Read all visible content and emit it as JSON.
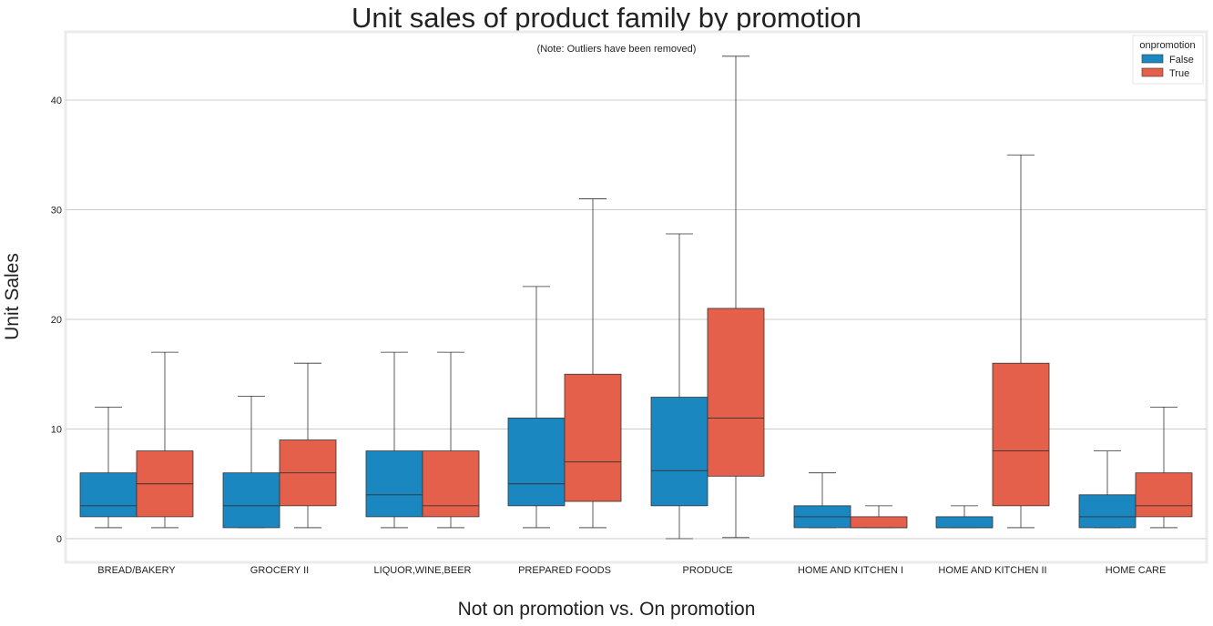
{
  "chart_data": {
    "type": "boxplot",
    "title": "Unit sales of product family by promotion",
    "note": "(Note: Outliers have been removed)",
    "xlabel": "Not on promotion vs. On promotion",
    "ylabel": "Unit Sales",
    "ylim": [
      -2,
      46
    ],
    "yticks": [
      0,
      10,
      20,
      30,
      40
    ],
    "grid": true,
    "legend": {
      "title": "onpromotion",
      "placement": "top-right",
      "entries": [
        "False",
        "True"
      ]
    },
    "colors": {
      "False": "#1a87c1",
      "True": "#e5604b"
    },
    "categories": [
      "BREAD/BAKERY",
      "GROCERY II",
      "LIQUOR,WINE,BEER",
      "PREPARED FOODS",
      "PRODUCE",
      "HOME AND KITCHEN I",
      "HOME AND KITCHEN II",
      "HOME CARE"
    ],
    "series": [
      {
        "name": "False",
        "boxes": [
          {
            "whislo": 1,
            "q1": 2,
            "med": 3,
            "q3": 6,
            "whishi": 12
          },
          {
            "whislo": 1,
            "q1": 1,
            "med": 3,
            "q3": 6,
            "whishi": 13
          },
          {
            "whislo": 1,
            "q1": 2,
            "med": 4,
            "q3": 8,
            "whishi": 17
          },
          {
            "whislo": 1,
            "q1": 3,
            "med": 5,
            "q3": 11,
            "whishi": 23
          },
          {
            "whislo": 0,
            "q1": 3,
            "med": 6.2,
            "q3": 12.9,
            "whishi": 27.8
          },
          {
            "whislo": 1,
            "q1": 1,
            "med": 2,
            "q3": 3,
            "whishi": 6
          },
          {
            "whislo": 1,
            "q1": 1,
            "med": 1,
            "q3": 2,
            "whishi": 3
          },
          {
            "whislo": 1,
            "q1": 1,
            "med": 2,
            "q3": 4,
            "whishi": 8
          }
        ]
      },
      {
        "name": "True",
        "boxes": [
          {
            "whislo": 1,
            "q1": 2,
            "med": 5,
            "q3": 8,
            "whishi": 17
          },
          {
            "whislo": 1,
            "q1": 3,
            "med": 6,
            "q3": 9,
            "whishi": 16
          },
          {
            "whislo": 1,
            "q1": 2,
            "med": 3,
            "q3": 8,
            "whishi": 17
          },
          {
            "whislo": 1,
            "q1": 3.4,
            "med": 7,
            "q3": 15,
            "whishi": 31
          },
          {
            "whislo": 0.1,
            "q1": 5.7,
            "med": 11,
            "q3": 21,
            "whishi": 44
          },
          {
            "whislo": 1,
            "q1": 1,
            "med": 1,
            "q3": 2,
            "whishi": 3
          },
          {
            "whislo": 1,
            "q1": 3,
            "med": 8,
            "q3": 16,
            "whishi": 35
          },
          {
            "whislo": 1,
            "q1": 2,
            "med": 3,
            "q3": 6,
            "whishi": 12
          }
        ]
      }
    ]
  }
}
